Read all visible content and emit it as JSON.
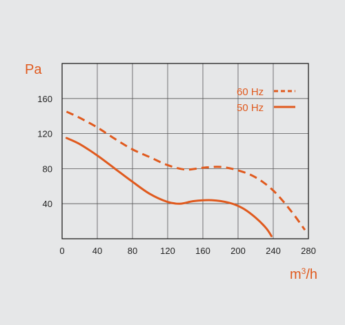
{
  "chart_data": {
    "type": "line",
    "title": "",
    "ylabel": "Pa",
    "xlabel_base": "m",
    "xlabel_exp": "3",
    "xlabel_tail": "/h",
    "xlim": [
      0,
      280
    ],
    "ylim": [
      0,
      200
    ],
    "x_ticks": [
      0,
      40,
      80,
      120,
      160,
      200,
      240,
      280
    ],
    "x_tick_labels": [
      "0",
      "40",
      "80",
      "120",
      "160",
      "200",
      "240",
      "280"
    ],
    "y_ticks": [
      40,
      80,
      120,
      160
    ],
    "y_tick_labels": [
      "40",
      "80",
      "120",
      "160"
    ],
    "grid": true,
    "legend_position": "top-right",
    "accent_color": "#e05a1e",
    "series": [
      {
        "name": "60 Hz",
        "style": "dashed",
        "x": [
          5,
          20,
          40,
          60,
          80,
          100,
          120,
          140,
          160,
          180,
          200,
          220,
          240,
          260,
          276
        ],
        "y": [
          145,
          138,
          127,
          114,
          102,
          93,
          84,
          79,
          81,
          82,
          78,
          70,
          55,
          32,
          10
        ]
      },
      {
        "name": "50 Hz",
        "style": "solid",
        "x": [
          5,
          20,
          40,
          60,
          80,
          100,
          120,
          134,
          150,
          170,
          190,
          205,
          220,
          232,
          238
        ],
        "y": [
          115,
          108,
          95,
          80,
          65,
          51,
          42,
          40,
          43,
          44,
          41,
          35,
          24,
          12,
          3
        ]
      }
    ]
  }
}
